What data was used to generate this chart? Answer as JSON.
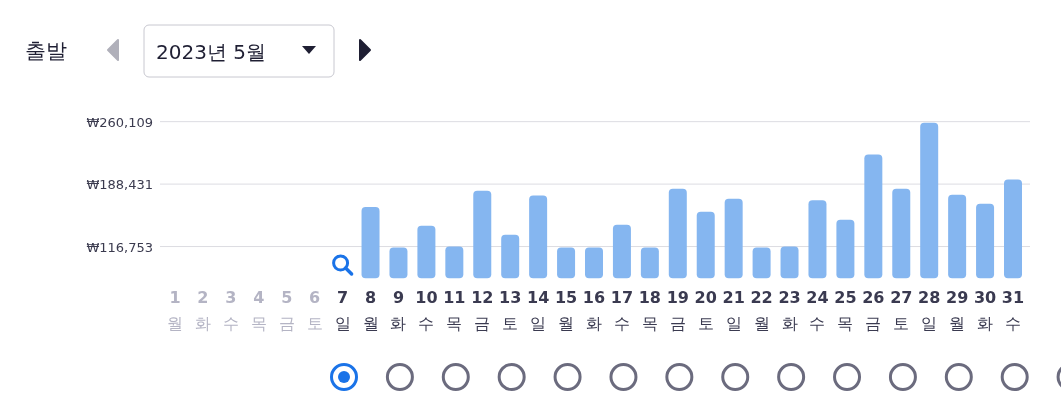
{
  "chart_data": {
    "type": "bar",
    "title": "출발",
    "subtitle": "2023년 5월",
    "categories": [
      "1\n월",
      "2\n화",
      "3\n수",
      "4\n목",
      "5\n금",
      "6\n토",
      "7\n일",
      "8\n월",
      "9\n화",
      "10\n수",
      "11\n목",
      "12\n금",
      "13\n토",
      "14\n일",
      "15\n월",
      "16\n화",
      "17\n수",
      "18\n목",
      "19\n금",
      "20\n토",
      "21\n일",
      "22\n월",
      "23\n화",
      "24\n수",
      "25\n목",
      "26\n금",
      "27\n토",
      "28\n일",
      "29\n월",
      "30\n화",
      "31\n수"
    ],
    "values": [
      null,
      null,
      null,
      null,
      null,
      null,
      null,
      162000,
      115600,
      140600,
      116800,
      180900,
      130200,
      175200,
      115600,
      115600,
      141700,
      115600,
      183200,
      156700,
      171700,
      115600,
      116800,
      169800,
      147500,
      222400,
      183200,
      258900,
      176300,
      165900,
      193600
    ],
    "color": "#85b6f0",
    "ylim": [
      80300,
      262000
    ],
    "yticks": [
      {
        "value": 116753,
        "label": "₩116,753"
      },
      {
        "value": 188431,
        "label": "₩188,431"
      },
      {
        "value": 260109,
        "label": "₩260,109"
      }
    ],
    "grid": "y"
  }
}
